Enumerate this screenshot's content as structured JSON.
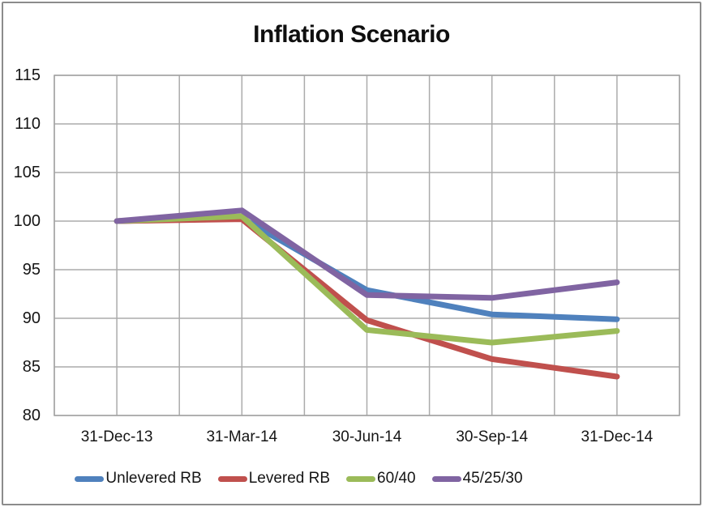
{
  "chart_data": {
    "type": "line",
    "title": "Inflation Scenario",
    "x": [
      "31-Dec-13",
      "31-Mar-14",
      "30-Jun-14",
      "30-Sep-14",
      "31-Dec-14"
    ],
    "series": [
      {
        "name": "Unlevered RB",
        "color": "#4F81BD",
        "values": [
          100.0,
          100.3,
          92.9,
          90.4,
          89.9
        ]
      },
      {
        "name": "Levered RB",
        "color": "#C0504D",
        "values": [
          100.0,
          100.2,
          89.8,
          85.8,
          84.0
        ]
      },
      {
        "name": "60/40",
        "color": "#9BBB59",
        "values": [
          100.0,
          100.5,
          88.8,
          87.5,
          88.7
        ]
      },
      {
        "name": "45/25/30",
        "color": "#8064A2",
        "values": [
          100.0,
          101.1,
          92.4,
          92.1,
          93.7
        ]
      }
    ],
    "ylim": [
      80,
      115
    ],
    "yticks": [
      115,
      110,
      105,
      100,
      95,
      90,
      85,
      80
    ],
    "grid": true,
    "legend_position": "bottom",
    "legend": [
      "Unlevered RB",
      "Levered RB",
      "60/40",
      "45/25/30"
    ]
  },
  "styles": {
    "gridline_color": "#ABABAB",
    "plot_border_color": "#A3A3A3",
    "text_color": "#151515",
    "frame_border_color": "#8C8C8C",
    "background": "#FFFFFF",
    "line_width": 7
  }
}
